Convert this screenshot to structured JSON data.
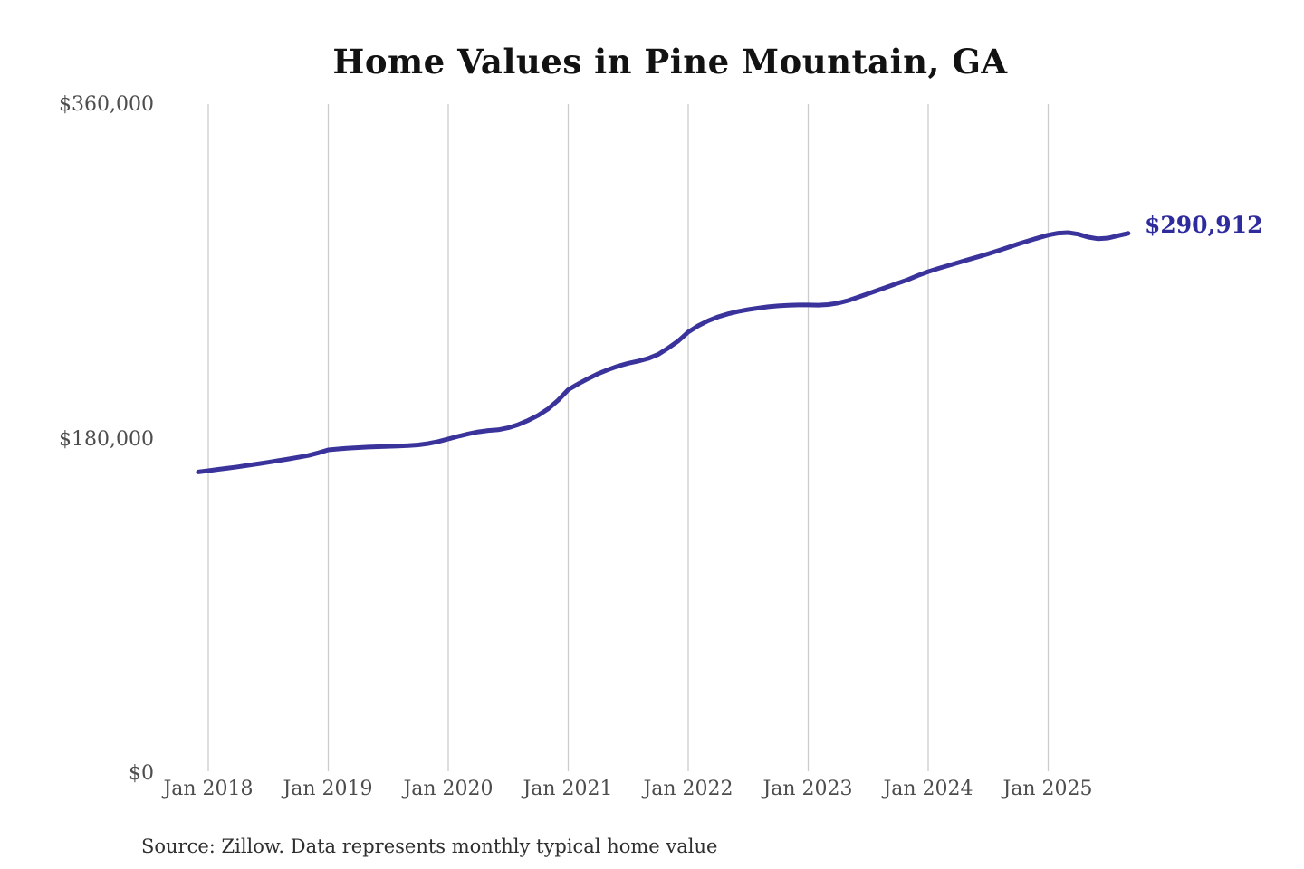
{
  "colors": {
    "line": "#3a339b",
    "end_label": "#2e2b9d",
    "gridline": "#cccccc",
    "axis_text": "#4d4d4d",
    "title_text": "#121212"
  },
  "chart_data": {
    "type": "line",
    "title": "Home Values in Pine Mountain, GA",
    "source": "Source: Zillow. Data represents monthly typical home value",
    "end_label": "$290,912",
    "latest_value": 290912,
    "xlabel": "",
    "ylabel": "",
    "ylim": [
      0,
      360000
    ],
    "y_tick_values": [
      360000,
      180000,
      0
    ],
    "y_tick_labels": [
      "$360,000",
      "$180,000",
      "$0"
    ],
    "x_tick_labels": [
      "Jan 2018",
      "Jan 2019",
      "Jan 2020",
      "Jan 2021",
      "Jan 2022",
      "Jan 2023",
      "Jan 2024",
      "Jan 2025"
    ],
    "grid": "vertical-yearly",
    "legend": "none",
    "series": [
      {
        "name": "Monthly typical home value",
        "start_month": "2017-12",
        "end_month": "2025-09",
        "values": [
          162500,
          163200,
          163900,
          164600,
          165300,
          166100,
          166900,
          167700,
          168600,
          169500,
          170400,
          171400,
          172800,
          174400,
          174900,
          175300,
          175600,
          175900,
          176100,
          176300,
          176500,
          176700,
          177100,
          177800,
          178900,
          180300,
          181700,
          183000,
          184100,
          184800,
          185200,
          186300,
          188000,
          190300,
          193000,
          196500,
          201200,
          206800,
          209900,
          212800,
          215400,
          217600,
          219500,
          221000,
          222200,
          223600,
          225800,
          229200,
          233000,
          237800,
          241200,
          243900,
          246000,
          247600,
          248900,
          249900,
          250700,
          251400,
          251900,
          252200,
          252400,
          252400,
          252300,
          252600,
          253400,
          254800,
          256600,
          258500,
          260400,
          262300,
          264200,
          266100,
          268300,
          270300,
          272000,
          273600,
          275200,
          276800,
          278300,
          279900,
          281600,
          283400,
          285200,
          286900,
          288500,
          290000,
          291000,
          291300,
          290500,
          288900,
          288000,
          288400,
          289700,
          290912
        ]
      }
    ]
  }
}
